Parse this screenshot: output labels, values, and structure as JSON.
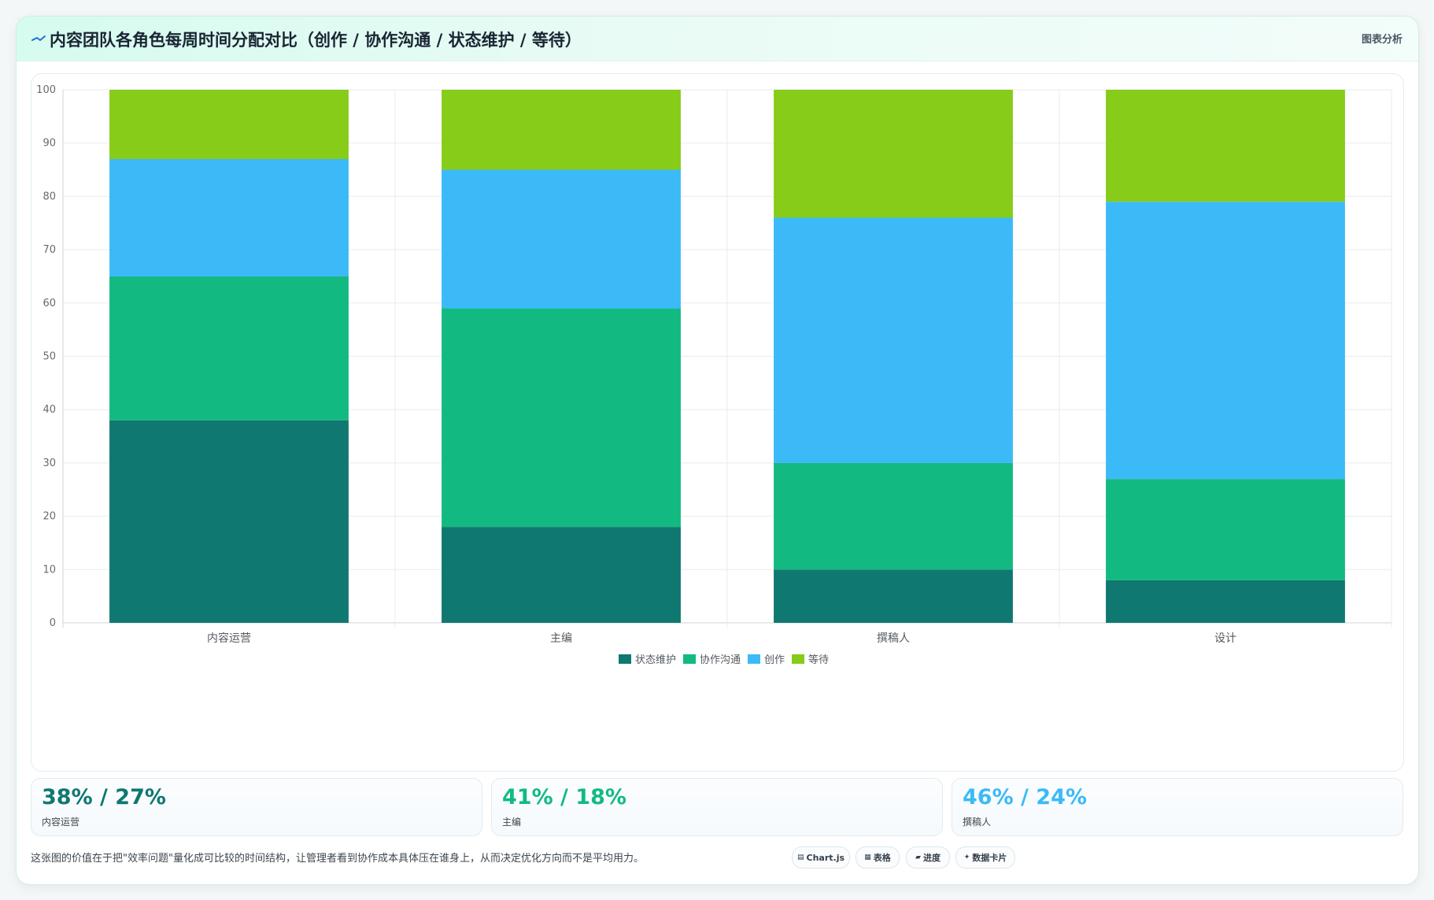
{
  "header": {
    "title": "内容团队各角色每周时间分配对比（创作 / 协作沟通 / 状态维护 / 等待）",
    "tag": "图表分析"
  },
  "colors": {
    "状态维护": "#0f7870",
    "协作沟通": "#12ba82",
    "创作": "#3bbaf7",
    "等待": "#86cc18"
  },
  "chart_data": {
    "type": "bar",
    "stacked": true,
    "categories": [
      "内容运营",
      "主编",
      "撰稿人",
      "设计"
    ],
    "series": [
      {
        "name": "状态维护",
        "values": [
          38,
          18,
          10,
          8
        ]
      },
      {
        "name": "协作沟通",
        "values": [
          27,
          41,
          20,
          19
        ]
      },
      {
        "name": "创作",
        "values": [
          22,
          26,
          46,
          52
        ]
      },
      {
        "name": "等待",
        "values": [
          13,
          15,
          24,
          21
        ]
      }
    ],
    "ylim": [
      0,
      100
    ],
    "yticks": [
      0,
      10,
      20,
      30,
      40,
      50,
      60,
      70,
      80,
      90,
      100
    ],
    "grid": true,
    "legend": "bottom"
  },
  "stats": [
    {
      "value": "38% / 27%",
      "label": "内容运营",
      "color": "#0f7870"
    },
    {
      "value": "41% / 18%",
      "label": "主编",
      "color": "#12ba82"
    },
    {
      "value": "46% / 24%",
      "label": "撰稿人",
      "color": "#3bbaf7"
    }
  ],
  "footer": {
    "note": "这张图的价值在于把\"效率问题\"量化成可比较的时间结构，让管理者看到协作成本具体压在谁身上，从而决定优化方向而不是平均用力。"
  },
  "chips": [
    {
      "icon": "chart-icon",
      "label": "Chart.js"
    },
    {
      "icon": "table-icon",
      "label": "表格"
    },
    {
      "icon": "progress-icon",
      "label": "进度"
    },
    {
      "icon": "sparkle-icon",
      "label": "数据卡片"
    }
  ]
}
